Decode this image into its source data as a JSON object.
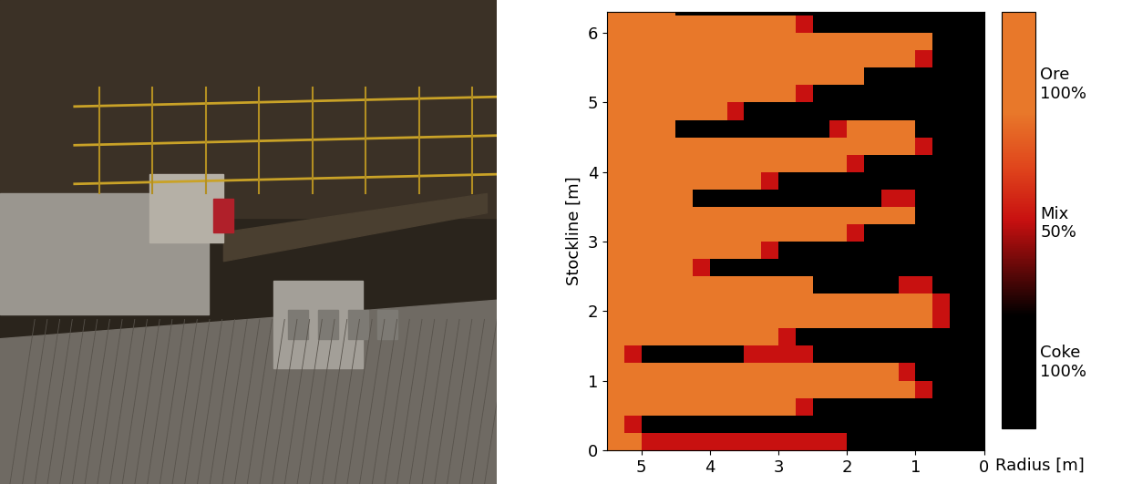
{
  "chart_data": {
    "type": "heatmap",
    "xlabel": "Radius [m]",
    "ylabel": "Stockline [m]",
    "xlim": [
      5.5,
      0
    ],
    "xticks": [
      5,
      4,
      3,
      2,
      1,
      0
    ],
    "ylim": [
      0,
      6.3
    ],
    "yticks": [
      0,
      1,
      2,
      3,
      4,
      5,
      6
    ],
    "x_edges": [
      0,
      0.25,
      0.5,
      0.75,
      1,
      1.25,
      1.5,
      1.75,
      2,
      2.25,
      2.5,
      2.75,
      3,
      3.25,
      3.5,
      3.75,
      4,
      4.25,
      4.5,
      4.75,
      5,
      5.25,
      5.5
    ],
    "y_edges": [
      0,
      0.25,
      0.5,
      0.75,
      1,
      1.25,
      1.5,
      1.75,
      2,
      2.25,
      2.5,
      2.75,
      3,
      3.25,
      3.5,
      3.75,
      4,
      4.25,
      4.5,
      4.75,
      5,
      5.25,
      5.5,
      5.75,
      6,
      6.25,
      6.5
    ],
    "cells": [
      [
        0,
        0,
        0,
        0,
        0,
        0,
        0,
        0,
        50,
        50,
        50,
        50,
        50,
        50,
        50,
        50,
        50,
        50,
        50,
        50,
        100,
        100
      ],
      [
        0,
        0,
        0,
        0,
        0,
        0,
        0,
        0,
        0,
        0,
        0,
        0,
        0,
        0,
        0,
        0,
        0,
        0,
        0,
        0,
        50,
        100
      ],
      [
        0,
        0,
        0,
        0,
        0,
        0,
        0,
        0,
        0,
        0,
        50,
        100,
        100,
        100,
        100,
        100,
        100,
        100,
        100,
        100,
        100,
        100
      ],
      [
        0,
        0,
        0,
        50,
        100,
        100,
        100,
        100,
        100,
        100,
        100,
        100,
        100,
        100,
        100,
        100,
        100,
        100,
        100,
        100,
        100,
        100
      ],
      [
        0,
        0,
        0,
        0,
        50,
        100,
        100,
        100,
        100,
        100,
        100,
        100,
        100,
        100,
        100,
        100,
        100,
        100,
        100,
        100,
        100,
        100
      ],
      [
        0,
        0,
        0,
        0,
        0,
        0,
        0,
        0,
        0,
        0,
        50,
        50,
        50,
        50,
        0,
        0,
        0,
        0,
        0,
        0,
        50,
        100
      ],
      [
        0,
        0,
        0,
        0,
        0,
        0,
        0,
        0,
        0,
        0,
        0,
        50,
        100,
        100,
        100,
        100,
        100,
        100,
        100,
        100,
        100,
        100
      ],
      [
        0,
        0,
        50,
        100,
        100,
        100,
        100,
        100,
        100,
        100,
        100,
        100,
        100,
        100,
        100,
        100,
        100,
        100,
        100,
        100,
        100,
        100
      ],
      [
        0,
        0,
        50,
        100,
        100,
        100,
        100,
        100,
        100,
        100,
        100,
        100,
        100,
        100,
        100,
        100,
        100,
        100,
        100,
        100,
        100,
        100
      ],
      [
        0,
        0,
        0,
        50,
        50,
        0,
        0,
        0,
        0,
        0,
        100,
        100,
        100,
        100,
        100,
        100,
        100,
        100,
        100,
        100,
        100,
        100
      ],
      [
        0,
        0,
        0,
        0,
        0,
        0,
        0,
        0,
        0,
        0,
        0,
        0,
        0,
        0,
        0,
        0,
        50,
        100,
        100,
        100,
        100,
        100
      ],
      [
        0,
        0,
        0,
        0,
        0,
        0,
        0,
        0,
        0,
        0,
        0,
        0,
        50,
        100,
        100,
        100,
        100,
        100,
        100,
        100,
        100,
        100
      ],
      [
        0,
        0,
        0,
        0,
        0,
        0,
        0,
        50,
        100,
        100,
        100,
        100,
        100,
        100,
        100,
        100,
        100,
        100,
        100,
        100,
        100,
        100
      ],
      [
        0,
        0,
        0,
        0,
        100,
        100,
        100,
        100,
        100,
        100,
        100,
        100,
        100,
        100,
        100,
        100,
        100,
        100,
        100,
        100,
        100,
        100
      ],
      [
        0,
        0,
        0,
        0,
        50,
        50,
        0,
        0,
        0,
        0,
        0,
        0,
        0,
        0,
        0,
        0,
        0,
        100,
        100,
        100,
        100,
        100
      ],
      [
        0,
        0,
        0,
        0,
        0,
        0,
        0,
        0,
        0,
        0,
        0,
        0,
        50,
        100,
        100,
        100,
        100,
        100,
        100,
        100,
        100,
        100
      ],
      [
        0,
        0,
        0,
        0,
        0,
        0,
        0,
        50,
        100,
        100,
        100,
        100,
        100,
        100,
        100,
        100,
        100,
        100,
        100,
        100,
        100,
        100
      ],
      [
        0,
        0,
        0,
        50,
        100,
        100,
        100,
        100,
        100,
        100,
        100,
        100,
        100,
        100,
        100,
        100,
        100,
        100,
        100,
        100,
        100,
        100
      ],
      [
        0,
        0,
        0,
        0,
        100,
        100,
        100,
        100,
        50,
        0,
        0,
        0,
        0,
        0,
        0,
        0,
        0,
        0,
        100,
        100,
        100,
        100
      ],
      [
        0,
        0,
        0,
        0,
        0,
        0,
        0,
        0,
        0,
        0,
        0,
        0,
        0,
        0,
        50,
        100,
        100,
        100,
        100,
        100,
        100,
        100
      ],
      [
        0,
        0,
        0,
        0,
        0,
        0,
        0,
        0,
        0,
        0,
        50,
        100,
        100,
        100,
        100,
        100,
        100,
        100,
        100,
        100,
        100,
        100
      ],
      [
        0,
        0,
        0,
        0,
        0,
        0,
        0,
        100,
        100,
        100,
        100,
        100,
        100,
        100,
        100,
        100,
        100,
        100,
        100,
        100,
        100,
        100
      ],
      [
        0,
        0,
        0,
        50,
        100,
        100,
        100,
        100,
        100,
        100,
        100,
        100,
        100,
        100,
        100,
        100,
        100,
        100,
        100,
        100,
        100,
        100
      ],
      [
        0,
        0,
        0,
        100,
        100,
        100,
        100,
        100,
        100,
        100,
        100,
        100,
        100,
        100,
        100,
        100,
        100,
        100,
        100,
        100,
        100,
        100
      ],
      [
        0,
        0,
        0,
        0,
        0,
        0,
        0,
        0,
        0,
        0,
        50,
        100,
        100,
        100,
        100,
        100,
        100,
        100,
        100,
        100,
        100,
        100
      ],
      [
        0,
        0,
        0,
        0,
        0,
        0,
        0,
        0,
        0,
        0,
        0,
        0,
        0,
        0,
        0,
        0,
        0,
        0,
        100,
        100,
        100,
        100
      ]
    ],
    "colorbar": {
      "range": [
        -25,
        125
      ],
      "ticks": [
        {
          "value": 100,
          "label": "Ore\n100%"
        },
        {
          "value": 50,
          "label": "Mix\n50%"
        },
        {
          "value": 0,
          "label": "Coke\n100%"
        }
      ]
    }
  }
}
